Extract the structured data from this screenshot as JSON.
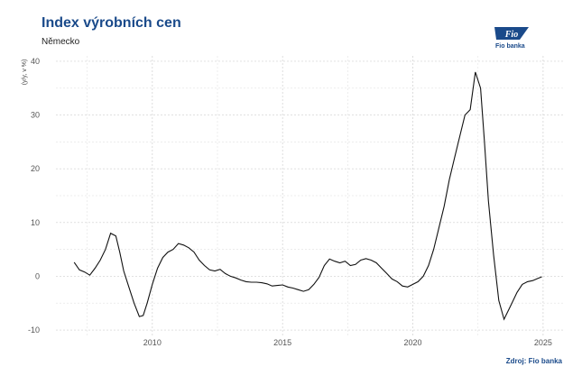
{
  "header": {
    "title": "Index výrobních cen",
    "subtitle": "Německo"
  },
  "logo": {
    "brand": "Fio",
    "tagline": "Fio banka",
    "color": "#1a4a8a"
  },
  "footer": {
    "source": "Zdroj: Fio banka"
  },
  "chart_data": {
    "type": "line",
    "title": "Index výrobních cen",
    "subtitle": "Německo",
    "ylabel": "(y/y, v %)",
    "xlabel": "",
    "xlim": [
      2006.3,
      2025.8
    ],
    "ylim": [
      -11,
      41
    ],
    "xticks": [
      2010,
      2015,
      2020,
      2025
    ],
    "yticks": [
      -10,
      0,
      10,
      20,
      30,
      40
    ],
    "grid": true,
    "line_color": "#111111",
    "series": [
      {
        "x": [
          2007.0,
          2007.2,
          2007.4,
          2007.6,
          2007.8,
          2008.0,
          2008.2,
          2008.4,
          2008.6,
          2008.75,
          2008.9,
          2009.1,
          2009.3,
          2009.5,
          2009.65,
          2009.8,
          2010.0,
          2010.2,
          2010.4,
          2010.6,
          2010.8,
          2011.0,
          2011.2,
          2011.4,
          2011.6,
          2011.8,
          2012.0,
          2012.2,
          2012.4,
          2012.6,
          2012.8,
          2013.0,
          2013.2,
          2013.4,
          2013.6,
          2013.8,
          2014.0,
          2014.2,
          2014.4,
          2014.6,
          2014.8,
          2015.0,
          2015.2,
          2015.4,
          2015.6,
          2015.8,
          2016.0,
          2016.2,
          2016.4,
          2016.6,
          2016.8,
          2017.0,
          2017.2,
          2017.4,
          2017.6,
          2017.8,
          2018.0,
          2018.2,
          2018.4,
          2018.6,
          2018.8,
          2019.0,
          2019.2,
          2019.4,
          2019.6,
          2019.8,
          2020.0,
          2020.2,
          2020.4,
          2020.6,
          2020.8,
          2021.0,
          2021.2,
          2021.4,
          2021.6,
          2021.8,
          2022.0,
          2022.2,
          2022.4,
          2022.6,
          2022.75,
          2022.9,
          2023.1,
          2023.3,
          2023.5,
          2023.7,
          2023.8,
          2024.0,
          2024.2,
          2024.4,
          2024.6,
          2024.8,
          2024.95
        ],
        "y": [
          2.6,
          1.2,
          0.8,
          0.2,
          1.5,
          3.0,
          5.0,
          8.0,
          7.5,
          4.5,
          1.0,
          -2.0,
          -5.0,
          -7.5,
          -7.3,
          -5.0,
          -1.5,
          1.5,
          3.5,
          4.5,
          5.0,
          6.1,
          5.8,
          5.3,
          4.5,
          3.0,
          2.0,
          1.2,
          1.0,
          1.3,
          0.5,
          0.0,
          -0.3,
          -0.7,
          -1.0,
          -1.1,
          -1.1,
          -1.2,
          -1.4,
          -1.8,
          -1.7,
          -1.6,
          -2.0,
          -2.2,
          -2.5,
          -2.8,
          -2.5,
          -1.5,
          -0.2,
          2.0,
          3.2,
          2.8,
          2.5,
          2.8,
          2.0,
          2.2,
          3.0,
          3.3,
          3.0,
          2.5,
          1.5,
          0.5,
          -0.5,
          -1.0,
          -1.8,
          -2.0,
          -1.5,
          -1.0,
          0.0,
          2.0,
          5.0,
          9.0,
          13.0,
          18.0,
          22.0,
          26.0,
          30.0,
          31.0,
          38.0,
          35.0,
          25.0,
          14.0,
          4.0,
          -4.5,
          -8.0,
          -6.0,
          -5.0,
          -3.0,
          -1.5,
          -1.0,
          -0.8,
          -0.4,
          -0.1
        ]
      }
    ]
  }
}
